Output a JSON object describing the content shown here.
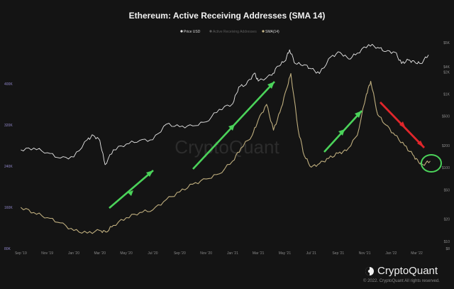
{
  "chart_data": {
    "type": "line",
    "title": "Ethereum: Active Receiving Addresses (SMA 14)",
    "legend": [
      {
        "name": "Price USD",
        "color": "#e8e8e8"
      },
      {
        "name": "Active Receiving Addresses",
        "color": "#5a5a5a"
      },
      {
        "name": "SMA(14)",
        "color": "#c9b98a"
      }
    ],
    "legend_placement": "top-center",
    "x_ticks": [
      "Sep '19",
      "Nov '19",
      "Jan '20",
      "Mar '20",
      "May '20",
      "Jul '20",
      "Sep '20",
      "Nov '20",
      "Jan '21",
      "Mar '21",
      "May '21",
      "Jul '21",
      "Sep '21",
      "Nov '21",
      "Jan '22",
      "Mar '22"
    ],
    "y_left_ticks": [
      "80K",
      "160K",
      "240K",
      "320K",
      "400K"
    ],
    "y_right_ticks": [
      "$8",
      "$10",
      "$20",
      "$50",
      "$100",
      "$200",
      "$500",
      "$1K",
      "$2K",
      "$5K"
    ],
    "y_right_ticks_extra": [
      "$4K"
    ],
    "x_range": [
      "2019-08-20",
      "2022-04-10"
    ],
    "y_left_range": [
      80000,
      480000
    ],
    "grid": false,
    "series": [
      {
        "name": "Price USD",
        "axis": "right",
        "x": [
          "2019-09-01",
          "2019-10-01",
          "2019-11-01",
          "2019-12-01",
          "2020-01-01",
          "2020-02-01",
          "2020-02-15",
          "2020-03-01",
          "2020-03-13",
          "2020-04-01",
          "2020-05-01",
          "2020-06-01",
          "2020-07-01",
          "2020-08-01",
          "2020-09-01",
          "2020-10-01",
          "2020-11-01",
          "2020-12-01",
          "2021-01-01",
          "2021-01-15",
          "2021-02-01",
          "2021-02-20",
          "2021-03-01",
          "2021-04-01",
          "2021-04-15",
          "2021-05-01",
          "2021-05-12",
          "2021-05-25",
          "2021-06-15",
          "2021-07-01",
          "2021-07-20",
          "2021-08-15",
          "2021-09-05",
          "2021-09-25",
          "2021-10-15",
          "2021-11-10",
          "2021-12-01",
          "2021-12-20",
          "2022-01-10",
          "2022-01-25",
          "2022-02-10",
          "2022-02-25",
          "2022-03-10",
          "2022-03-28"
        ],
        "values": [
          175,
          185,
          160,
          135,
          140,
          240,
          275,
          235,
          110,
          175,
          210,
          235,
          240,
          390,
          360,
          370,
          420,
          620,
          740,
          1250,
          1350,
          1920,
          1500,
          1800,
          2400,
          2800,
          4000,
          2600,
          2500,
          2200,
          1900,
          3200,
          3700,
          3000,
          3600,
          4700,
          4300,
          3800,
          3700,
          2600,
          2900,
          2700,
          2600,
          3400
        ]
      },
      {
        "name": "SMA(14)",
        "axis": "left",
        "x": [
          "2019-09-01",
          "2019-10-01",
          "2019-11-01",
          "2019-12-01",
          "2020-01-01",
          "2020-02-01",
          "2020-03-01",
          "2020-03-15",
          "2020-04-01",
          "2020-05-01",
          "2020-06-01",
          "2020-07-01",
          "2020-08-01",
          "2020-09-01",
          "2020-10-01",
          "2020-11-01",
          "2020-12-01",
          "2021-01-01",
          "2021-01-20",
          "2021-02-15",
          "2021-03-01",
          "2021-03-20",
          "2021-04-05",
          "2021-04-20",
          "2021-05-05",
          "2021-05-15",
          "2021-06-01",
          "2021-06-15",
          "2021-07-01",
          "2021-07-20",
          "2021-08-10",
          "2021-09-01",
          "2021-09-20",
          "2021-10-15",
          "2021-11-05",
          "2021-11-15",
          "2021-12-01",
          "2021-12-20",
          "2022-01-10",
          "2022-02-01",
          "2022-02-20",
          "2022-03-05",
          "2022-03-15",
          "2022-04-01"
        ],
        "values": [
          160000,
          150000,
          140000,
          130000,
          115000,
          110000,
          115000,
          112000,
          125000,
          140000,
          150000,
          155000,
          175000,
          190000,
          205000,
          215000,
          225000,
          250000,
          275000,
          300000,
          330000,
          360000,
          310000,
          345000,
          390000,
          420000,
          310000,
          260000,
          238000,
          245000,
          255000,
          265000,
          270000,
          300000,
          380000,
          405000,
          340000,
          320000,
          300000,
          280000,
          262000,
          248000,
          243000,
          250000
        ]
      }
    ],
    "annotations": [
      "Crypto Quant"
    ],
    "watermark": "CryptoQuant"
  },
  "branding": {
    "name": "CryptoQuant",
    "copyright": "© 2022. CryptoQuant All rights reserved."
  }
}
